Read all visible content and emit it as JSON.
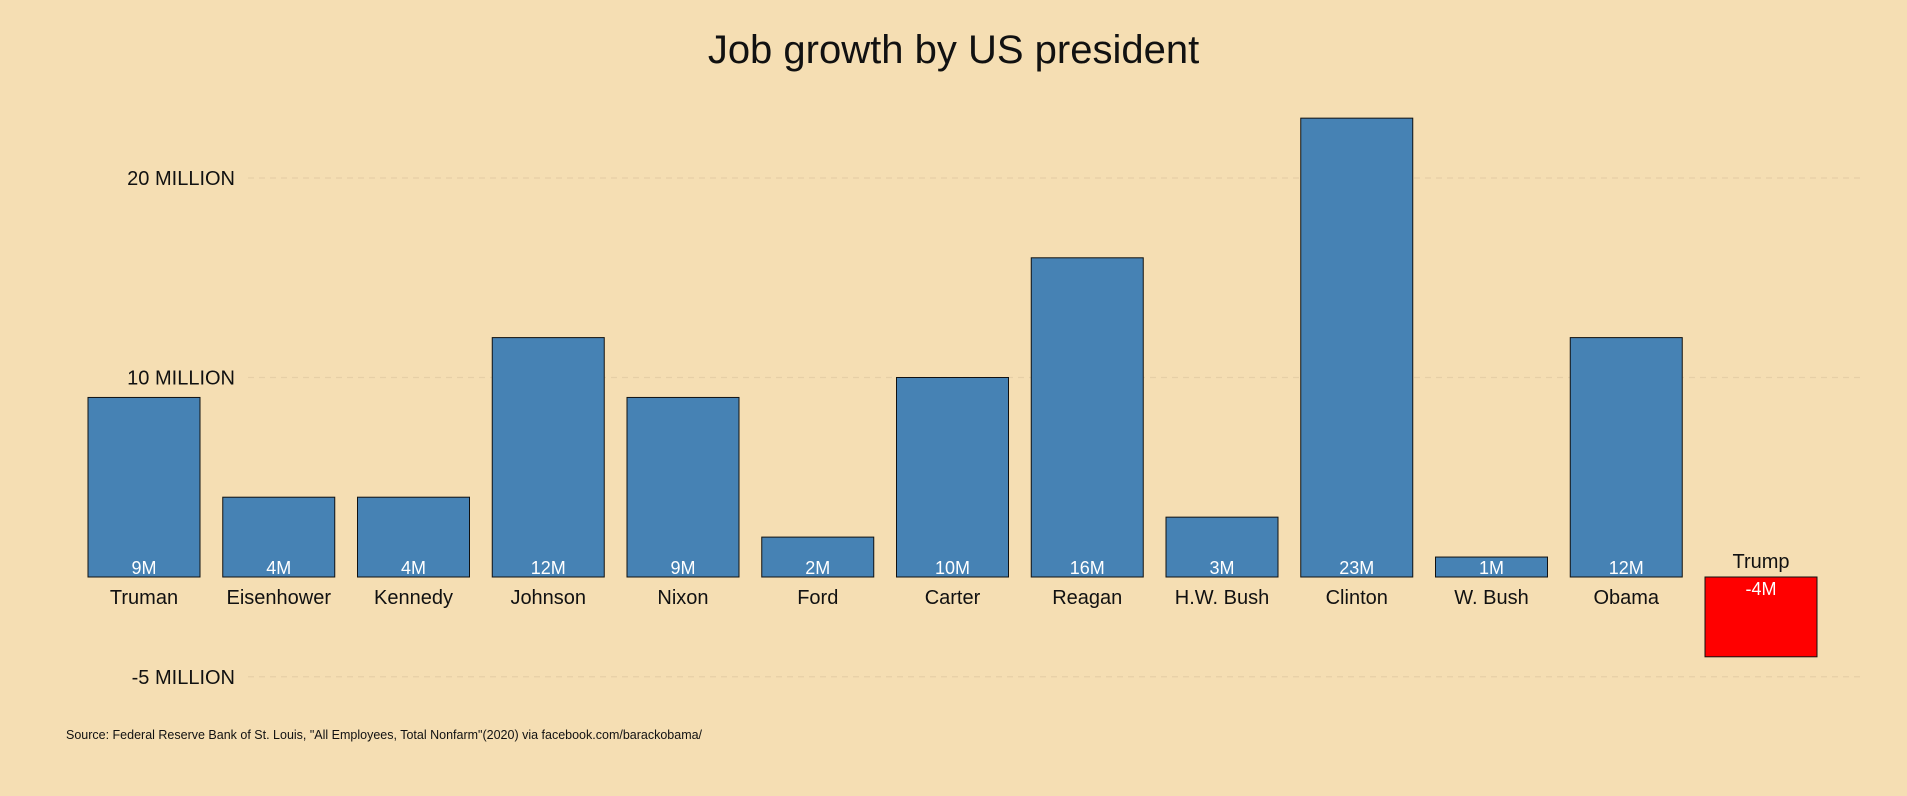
{
  "chart_data": {
    "type": "bar",
    "title": "Job growth by US president",
    "xlabel": "",
    "ylabel": "",
    "source": "Source: Federal Reserve Bank of St. Louis, \"All Employees, Total Nonfarm\"(2020) via facebook.com/barackobama/",
    "categories": [
      "Truman",
      "Eisenhower",
      "Kennedy",
      "Johnson",
      "Nixon",
      "Ford",
      "Carter",
      "Reagan",
      "H.W. Bush",
      "Clinton",
      "W. Bush",
      "Obama",
      "Trump"
    ],
    "values": [
      9,
      4,
      4,
      12,
      9,
      2,
      10,
      16,
      3,
      23,
      1,
      12,
      -4
    ],
    "value_labels": [
      "9M",
      "4M",
      "4M",
      "12M",
      "9M",
      "2M",
      "10M",
      "16M",
      "3M",
      "23M",
      "1M",
      "12M",
      "-4M"
    ],
    "y_ticks": [
      {
        "value": -5,
        "label": "-5 MILLION"
      },
      {
        "value": 10,
        "label": "10 MILLION"
      },
      {
        "value": 20,
        "label": "20 MILLION"
      }
    ],
    "ylim": [
      -6.2,
      26.5
    ],
    "grid": true,
    "legend": "none",
    "colors": {
      "positive": "#4682B4",
      "negative": "#FF0000",
      "background": "#F5DEB3",
      "gridline": "#E6CFA6",
      "bar_outline": "#111111",
      "value_label": "#FFFFFF"
    }
  }
}
